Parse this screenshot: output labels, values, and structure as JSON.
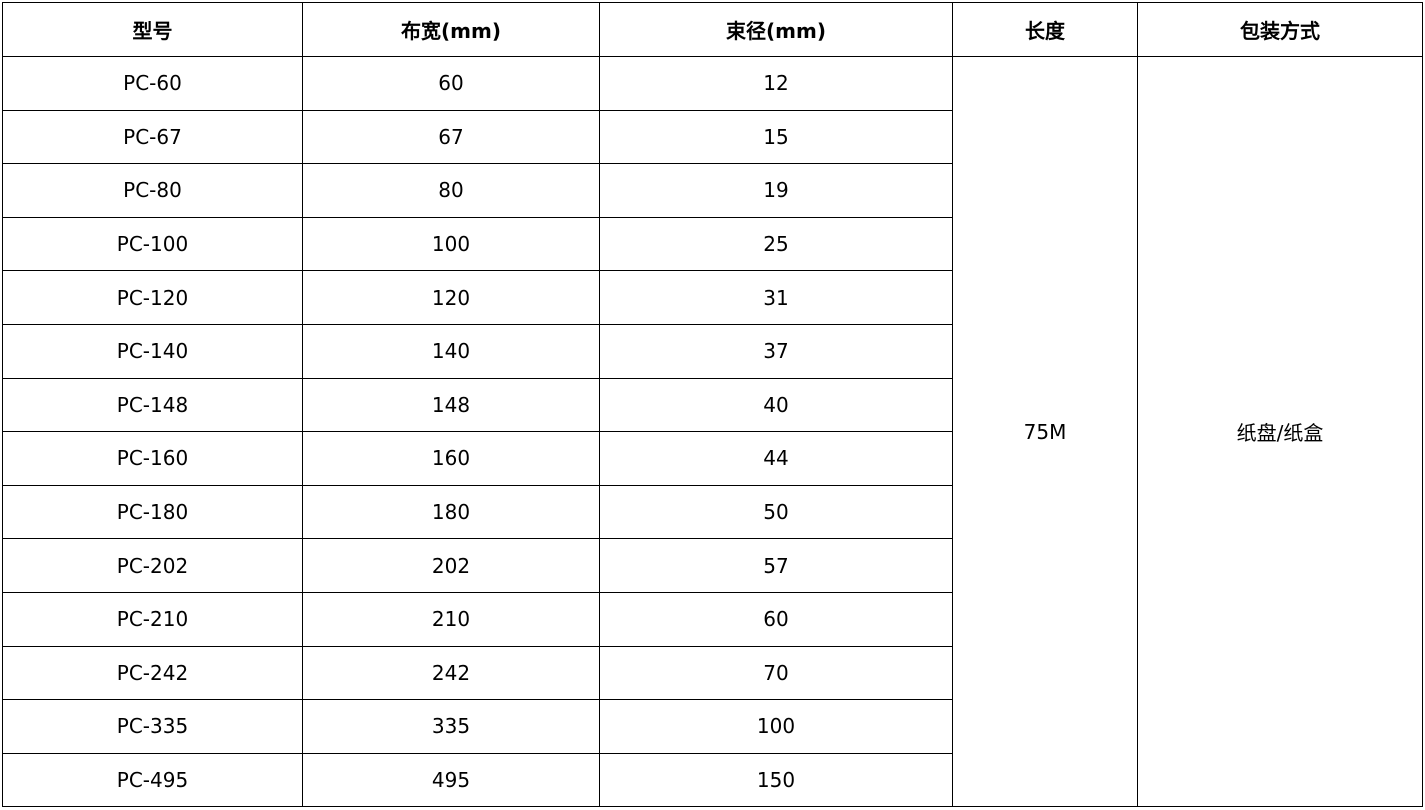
{
  "table": {
    "headers": [
      "型号",
      "布宽(mm)",
      "束径(mm)",
      "长度",
      "包装方式"
    ],
    "rows": [
      [
        "PC-60",
        "60",
        "12"
      ],
      [
        "PC-67",
        "67",
        "15"
      ],
      [
        "PC-80",
        "80",
        "19"
      ],
      [
        "PC-100",
        "100",
        "25"
      ],
      [
        "PC-120",
        "120",
        "31"
      ],
      [
        "PC-140",
        "140",
        "37"
      ],
      [
        "PC-148",
        "148",
        "40"
      ],
      [
        "PC-160",
        "160",
        "44"
      ],
      [
        "PC-180",
        "180",
        "50"
      ],
      [
        "PC-202",
        "202",
        "57"
      ],
      [
        "PC-210",
        "210",
        "60"
      ],
      [
        "PC-242",
        "242",
        "70"
      ],
      [
        "PC-335",
        "335",
        "100"
      ],
      [
        "PC-495",
        "495",
        "150"
      ]
    ],
    "length": "75M",
    "packaging": "纸盘/纸盒"
  }
}
